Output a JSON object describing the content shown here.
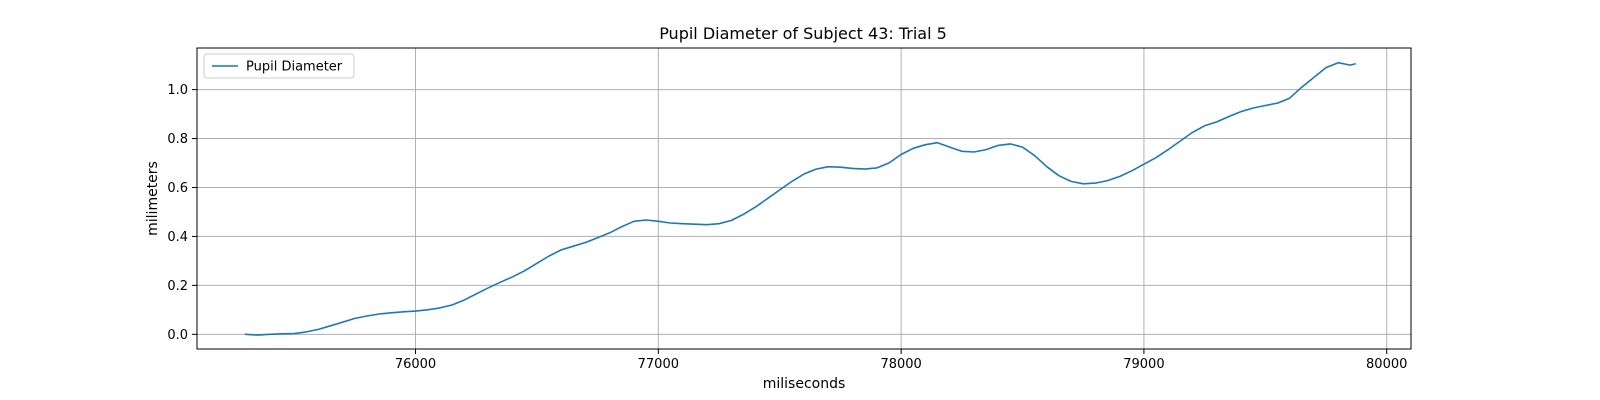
{
  "chart_data": {
    "type": "line",
    "title": "Pupil Diameter of Subject 43: Trial 5",
    "xlabel": "miliseconds",
    "ylabel": "milimeters",
    "xlim": [
      75100,
      80100
    ],
    "ylim": [
      -0.06,
      1.17
    ],
    "xticks": [
      76000,
      77000,
      78000,
      79000,
      80000
    ],
    "yticks": [
      0.0,
      0.2,
      0.4,
      0.6,
      0.8,
      1.0
    ],
    "xtick_labels": [
      "76000",
      "77000",
      "78000",
      "79000",
      "80000"
    ],
    "ytick_labels": [
      "0.0",
      "0.2",
      "0.4",
      "0.6",
      "0.8",
      "1.0"
    ],
    "grid": true,
    "legend": "top-left",
    "series": [
      {
        "name": "Pupil Diameter",
        "color": "#1f77b4",
        "x": [
          75300,
          75350,
          75400,
          75450,
          75500,
          75550,
          75600,
          75650,
          75700,
          75750,
          75800,
          75850,
          75900,
          75950,
          76000,
          76050,
          76100,
          76150,
          76200,
          76250,
          76300,
          76350,
          76400,
          76450,
          76500,
          76550,
          76600,
          76650,
          76700,
          76750,
          76800,
          76850,
          76900,
          76950,
          77000,
          77050,
          77100,
          77150,
          77200,
          77250,
          77300,
          77350,
          77400,
          77450,
          77500,
          77550,
          77600,
          77650,
          77700,
          77750,
          77800,
          77850,
          77900,
          77950,
          78000,
          78050,
          78100,
          78150,
          78200,
          78250,
          78300,
          78350,
          78400,
          78450,
          78500,
          78550,
          78600,
          78650,
          78700,
          78750,
          78800,
          78850,
          78900,
          78950,
          79000,
          79050,
          79100,
          79150,
          79200,
          79250,
          79300,
          79350,
          79400,
          79450,
          79500,
          79550,
          79600,
          79650,
          79700,
          79750,
          79800,
          79850,
          79870
        ],
        "values": [
          0.0,
          -0.003,
          0.0,
          0.002,
          0.003,
          0.01,
          0.02,
          0.035,
          0.05,
          0.065,
          0.075,
          0.083,
          0.088,
          0.092,
          0.095,
          0.1,
          0.108,
          0.12,
          0.14,
          0.165,
          0.19,
          0.213,
          0.235,
          0.26,
          0.29,
          0.32,
          0.345,
          0.36,
          0.375,
          0.395,
          0.415,
          0.44,
          0.462,
          0.467,
          0.462,
          0.455,
          0.452,
          0.45,
          0.448,
          0.452,
          0.465,
          0.49,
          0.52,
          0.555,
          0.59,
          0.625,
          0.655,
          0.675,
          0.685,
          0.683,
          0.678,
          0.675,
          0.68,
          0.7,
          0.735,
          0.76,
          0.775,
          0.783,
          0.765,
          0.748,
          0.745,
          0.755,
          0.772,
          0.778,
          0.765,
          0.73,
          0.685,
          0.648,
          0.625,
          0.615,
          0.618,
          0.628,
          0.645,
          0.668,
          0.695,
          0.722,
          0.755,
          0.79,
          0.825,
          0.852,
          0.868,
          0.89,
          0.91,
          0.925,
          0.935,
          0.945,
          0.965,
          1.01,
          1.05,
          1.09,
          1.11,
          1.1,
          1.105
        ]
      }
    ]
  }
}
